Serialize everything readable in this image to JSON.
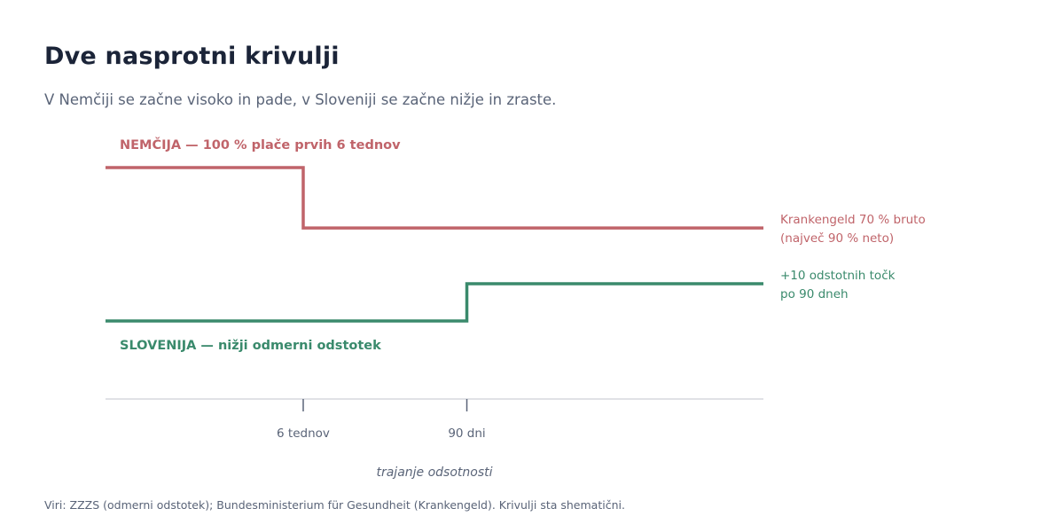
{
  "header": {
    "title": "Dve nasprotni krivulji",
    "subtitle": "V Nemčiji se začne visoko in pade, v Sloveniji se začne nižje in zraste."
  },
  "footer": {
    "source": "Viri: ZZZS (odmerni odstotek); Bundesministerium für Gesundheit (Krankengeld). Krivulji sta shematični."
  },
  "chart_data": {
    "type": "line",
    "step": true,
    "xlabel": "trajanje odsotnosti",
    "ylabel": "",
    "x_ticks": [
      {
        "value": 42,
        "label": "6 tednov"
      },
      {
        "value": 90,
        "label": "90 dni"
      }
    ],
    "xlim": [
      -16,
      177
    ],
    "ylim": [
      0,
      100
    ],
    "y_scale": "schematic",
    "grid": false,
    "legend": "direct labels",
    "colors": {
      "germany": "#c0646a",
      "slovenia": "#3a8a6c",
      "axis": "#5a6478"
    },
    "series": [
      {
        "key": "germany",
        "label": "NEMČIJA — 100 % plače prvih 6 tednov",
        "end_label": [
          "Krankengeld 70 % bruto",
          "(največ 90 % neto)"
        ],
        "points": [
          {
            "x": -16,
            "y": 100
          },
          {
            "x": 42,
            "y": 100
          },
          {
            "x": 42,
            "y": 74
          },
          {
            "x": 177,
            "y": 74
          }
        ]
      },
      {
        "key": "slovenia",
        "label": "SLOVENIJA — nižji odmerni odstotek",
        "end_label": [
          "+10 odstotnih točk",
          "po 90 dneh"
        ],
        "points": [
          {
            "x": -16,
            "y": 34
          },
          {
            "x": 90,
            "y": 34
          },
          {
            "x": 90,
            "y": 50
          },
          {
            "x": 177,
            "y": 50
          }
        ]
      }
    ]
  }
}
